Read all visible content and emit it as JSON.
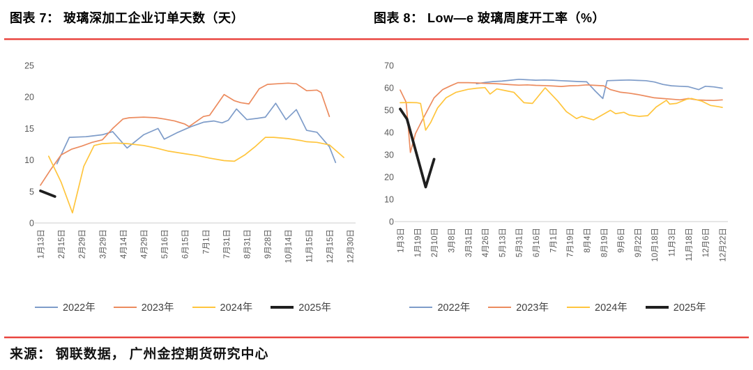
{
  "titles": [
    {
      "text": "图表 7： 玻璃深加工企业订单天数（天）"
    },
    {
      "text": "图表 8： Low—e 玻璃周度开工率（%）"
    }
  ],
  "source_line": "来源： 钢联数据， 广州金控期货研究中心",
  "rule_color": "#E8413C",
  "chart_data": [
    {
      "type": "line",
      "title": "玻璃深加工企业订单天数（天）",
      "ylabel": "天",
      "ylim": [
        0,
        25
      ],
      "yticks": [
        0,
        5,
        10,
        15,
        20,
        25
      ],
      "grid": false,
      "legend_position": "bottom",
      "x_labels": [
        "1月13日",
        "2月15日",
        "2月29日",
        "3月29日",
        "4月14日",
        "4月29日",
        "5月16日",
        "6月15日",
        "7月1日",
        "7月31日",
        "8月31日",
        "9月28日",
        "10月14日",
        "11月15日",
        "12月15日",
        "12月30日"
      ],
      "series": [
        {
          "name": "2022年",
          "color": "#7E9CC9",
          "width": 1.7,
          "points": [
            [
              0.8,
              9.4
            ],
            [
              1.4,
              13.6
            ],
            [
              2.2,
              13.7
            ],
            [
              3.0,
              14.0
            ],
            [
              3.5,
              14.5
            ],
            [
              4.2,
              11.9
            ],
            [
              5.0,
              14.0
            ],
            [
              5.7,
              15.0
            ],
            [
              6.0,
              13.3
            ],
            [
              6.6,
              14.3
            ],
            [
              7.3,
              15.3
            ],
            [
              7.9,
              16.0
            ],
            [
              8.4,
              16.2
            ],
            [
              8.8,
              15.9
            ],
            [
              9.1,
              16.3
            ],
            [
              9.5,
              18.1
            ],
            [
              10.0,
              16.4
            ],
            [
              10.5,
              16.6
            ],
            [
              10.9,
              16.8
            ],
            [
              11.4,
              19.0
            ],
            [
              11.9,
              16.4
            ],
            [
              12.4,
              18.0
            ],
            [
              12.9,
              14.7
            ],
            [
              13.4,
              14.4
            ],
            [
              14.0,
              12.1
            ],
            [
              14.3,
              9.6
            ]
          ]
        },
        {
          "name": "2023年",
          "color": "#EC8B5E",
          "width": 1.7,
          "points": [
            [
              0,
              6.0
            ],
            [
              0.5,
              8.5
            ],
            [
              1.0,
              10.8
            ],
            [
              1.5,
              11.7
            ],
            [
              2.0,
              12.2
            ],
            [
              2.5,
              12.8
            ],
            [
              3.0,
              13.2
            ],
            [
              3.5,
              15.0
            ],
            [
              4.0,
              16.5
            ],
            [
              4.3,
              16.7
            ],
            [
              5.0,
              16.8
            ],
            [
              5.6,
              16.7
            ],
            [
              6.0,
              16.5
            ],
            [
              6.5,
              16.2
            ],
            [
              7.0,
              15.7
            ],
            [
              7.2,
              15.3
            ],
            [
              7.9,
              16.9
            ],
            [
              8.2,
              17.1
            ],
            [
              8.9,
              20.4
            ],
            [
              9.4,
              19.4
            ],
            [
              9.7,
              19.1
            ],
            [
              10.1,
              18.9
            ],
            [
              10.6,
              21.3
            ],
            [
              11.0,
              22.0
            ],
            [
              11.5,
              22.1
            ],
            [
              12.0,
              22.2
            ],
            [
              12.4,
              22.1
            ],
            [
              12.9,
              21.0
            ],
            [
              13.4,
              21.1
            ],
            [
              13.6,
              20.7
            ],
            [
              14.0,
              16.9
            ]
          ]
        },
        {
          "name": "2024年",
          "color": "#FFC53D",
          "width": 1.7,
          "points": [
            [
              0.4,
              10.6
            ],
            [
              1.0,
              6.5
            ],
            [
              1.55,
              1.6
            ],
            [
              2.1,
              9.0
            ],
            [
              2.6,
              12.3
            ],
            [
              3.0,
              12.6
            ],
            [
              3.6,
              12.7
            ],
            [
              4.2,
              12.6
            ],
            [
              5.0,
              12.3
            ],
            [
              5.6,
              11.9
            ],
            [
              6.2,
              11.4
            ],
            [
              7.0,
              11.0
            ],
            [
              7.6,
              10.7
            ],
            [
              8.2,
              10.3
            ],
            [
              8.9,
              9.9
            ],
            [
              9.4,
              9.8
            ],
            [
              9.9,
              10.8
            ],
            [
              10.4,
              12.1
            ],
            [
              10.9,
              13.6
            ],
            [
              11.3,
              13.6
            ],
            [
              12.0,
              13.4
            ],
            [
              12.6,
              13.1
            ],
            [
              12.9,
              12.9
            ],
            [
              13.4,
              12.8
            ],
            [
              14.0,
              12.4
            ],
            [
              14.7,
              10.4
            ]
          ]
        },
        {
          "name": "2025年",
          "color": "#1F1F1F",
          "width": 3.8,
          "points": [
            [
              0,
              5.1
            ],
            [
              0.7,
              4.2
            ]
          ]
        }
      ]
    },
    {
      "type": "line",
      "title": "Low—e 玻璃周度开工率（%）",
      "ylabel": "%",
      "ylim": [
        0,
        70
      ],
      "yticks": [
        0,
        10,
        20,
        30,
        40,
        50,
        60,
        70
      ],
      "grid": false,
      "legend_position": "bottom",
      "x_labels": [
        "1月3日",
        "1月19日",
        "2月10日",
        "3月8日",
        "3月31日",
        "4月26日",
        "5月13日",
        "5月31日",
        "6月16日",
        "7月1日",
        "7月19日",
        "8月4日",
        "8月19日",
        "9月6日",
        "9月22日",
        "10月18日",
        "11月3日",
        "11月18日",
        "12月6日",
        "12月22日"
      ],
      "series": [
        {
          "name": "2022年",
          "color": "#7E9CC9",
          "width": 1.7,
          "points": [
            [
              4.5,
              61.8
            ],
            [
              5.0,
              62.4
            ],
            [
              5.5,
              62.8
            ],
            [
              6.0,
              63.0
            ],
            [
              6.5,
              63.4
            ],
            [
              7.0,
              63.8
            ],
            [
              7.5,
              63.6
            ],
            [
              8.0,
              63.4
            ],
            [
              8.5,
              63.5
            ],
            [
              9.0,
              63.4
            ],
            [
              9.5,
              63.2
            ],
            [
              10.0,
              63.0
            ],
            [
              10.5,
              62.8
            ],
            [
              11.0,
              62.7
            ],
            [
              11.5,
              58.6
            ],
            [
              11.95,
              55.2
            ],
            [
              12.2,
              63.2
            ],
            [
              13.0,
              63.4
            ],
            [
              13.5,
              63.5
            ],
            [
              14.0,
              63.3
            ],
            [
              14.5,
              63.2
            ],
            [
              15.0,
              62.6
            ],
            [
              15.5,
              61.5
            ],
            [
              16.0,
              60.9
            ],
            [
              16.5,
              60.7
            ],
            [
              17.0,
              60.5
            ],
            [
              17.6,
              59.2
            ],
            [
              18.0,
              60.7
            ],
            [
              18.5,
              60.4
            ],
            [
              19.0,
              59.8
            ]
          ]
        },
        {
          "name": "2023年",
          "color": "#EC8B5E",
          "width": 1.7,
          "points": [
            [
              0,
              59.0
            ],
            [
              0.35,
              53.5
            ],
            [
              0.6,
              31.0
            ],
            [
              0.9,
              39.5
            ],
            [
              1.4,
              46.9
            ],
            [
              2.0,
              55.5
            ],
            [
              2.5,
              59.2
            ],
            [
              3.0,
              61.0
            ],
            [
              3.4,
              62.3
            ],
            [
              4.0,
              62.3
            ],
            [
              4.5,
              62.2
            ],
            [
              5.0,
              62.0
            ],
            [
              5.5,
              61.9
            ],
            [
              6.0,
              61.7
            ],
            [
              6.5,
              61.4
            ],
            [
              7.0,
              61.2
            ],
            [
              7.5,
              61.3
            ],
            [
              8.0,
              61.1
            ],
            [
              8.5,
              61.0
            ],
            [
              9.0,
              60.8
            ],
            [
              9.5,
              60.6
            ],
            [
              10.0,
              60.9
            ],
            [
              10.5,
              61.0
            ],
            [
              11.0,
              61.3
            ],
            [
              11.5,
              61.1
            ],
            [
              12.0,
              60.9
            ],
            [
              12.4,
              59.2
            ],
            [
              13.0,
              58.0
            ],
            [
              13.5,
              57.6
            ],
            [
              14.0,
              57.0
            ],
            [
              14.6,
              56.1
            ],
            [
              15.0,
              55.5
            ],
            [
              15.5,
              55.2
            ],
            [
              16.0,
              54.9
            ],
            [
              16.5,
              54.6
            ],
            [
              17.0,
              55.2
            ],
            [
              17.5,
              54.6
            ],
            [
              18.0,
              54.4
            ],
            [
              18.5,
              54.3
            ],
            [
              19.0,
              54.6
            ]
          ]
        },
        {
          "name": "2024年",
          "color": "#FFC53D",
          "width": 1.7,
          "points": [
            [
              0,
              53.3
            ],
            [
              0.5,
              53.4
            ],
            [
              1.0,
              53.3
            ],
            [
              1.2,
              53.0
            ],
            [
              1.5,
              41.0
            ],
            [
              1.8,
              44.5
            ],
            [
              2.2,
              50.9
            ],
            [
              2.7,
              55.5
            ],
            [
              3.3,
              58.0
            ],
            [
              4.0,
              59.3
            ],
            [
              4.5,
              59.8
            ],
            [
              5.0,
              60.1
            ],
            [
              5.3,
              57.2
            ],
            [
              5.7,
              59.5
            ],
            [
              6.3,
              58.6
            ],
            [
              6.7,
              58.0
            ],
            [
              7.3,
              53.3
            ],
            [
              7.8,
              53.0
            ],
            [
              8.55,
              60.0
            ],
            [
              9.3,
              54.0
            ],
            [
              9.8,
              49.3
            ],
            [
              10.4,
              46.2
            ],
            [
              10.7,
              47.2
            ],
            [
              11.4,
              45.6
            ],
            [
              12.4,
              49.9
            ],
            [
              12.7,
              48.4
            ],
            [
              13.2,
              49.0
            ],
            [
              13.5,
              47.8
            ],
            [
              14.1,
              47.2
            ],
            [
              14.6,
              47.5
            ],
            [
              15.1,
              51.4
            ],
            [
              15.7,
              54.4
            ],
            [
              15.9,
              52.7
            ],
            [
              16.3,
              53.0
            ],
            [
              16.9,
              54.9
            ],
            [
              17.2,
              55.2
            ],
            [
              17.8,
              54.0
            ],
            [
              18.3,
              52.1
            ],
            [
              18.8,
              51.5
            ],
            [
              19.0,
              51.2
            ]
          ]
        },
        {
          "name": "2025年",
          "color": "#1F1F1F",
          "width": 3.8,
          "points": [
            [
              0,
              50.5
            ],
            [
              0.4,
              46.0
            ],
            [
              1.5,
              15.5
            ],
            [
              2.0,
              28.0
            ]
          ]
        }
      ]
    }
  ]
}
